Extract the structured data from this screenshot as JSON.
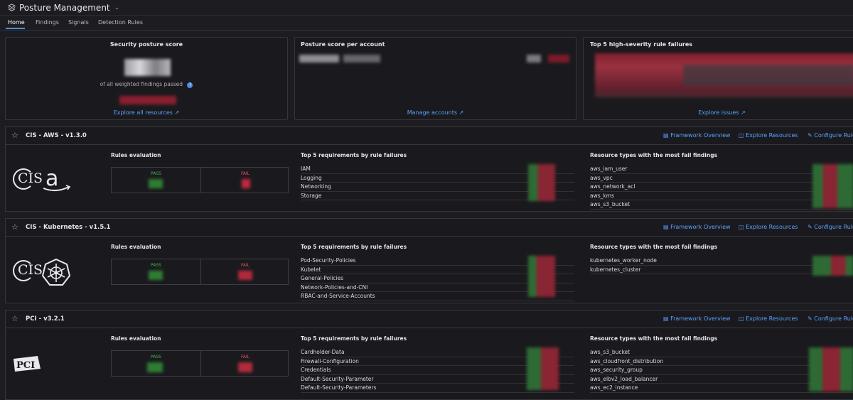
{
  "header": {
    "title": "Posture Management"
  },
  "tabs": [
    "Home",
    "Findings",
    "Signals",
    "Detection Rules"
  ],
  "cards": {
    "score": {
      "title": "Security posture score",
      "caption": "of all weighted findings passed",
      "link": "Explore all resources"
    },
    "accounts": {
      "title": "Posture score per account",
      "link": "Manage accounts"
    },
    "failures": {
      "title": "Top 5 high-severity rule failures",
      "link": "Explore issues"
    }
  },
  "section_actions": {
    "overview": "Framework Overview",
    "resources": "Explore Resources",
    "configure": "Configure Rules"
  },
  "section_labels": {
    "rules_eval": "Rules evaluation",
    "top_requirements": "Top 5 requirements by rule failures",
    "resource_types": "Resource types with the most fail findings",
    "pass": "PASS",
    "fail": "FAIL"
  },
  "frameworks": [
    {
      "title": "CIS - AWS - v1.3.0",
      "logos": [
        "CIS",
        "amazon"
      ],
      "requirements": [
        "IAM",
        "Logging",
        "Networking",
        "Storage"
      ],
      "resources": [
        "aws_iam_user",
        "aws_vpc",
        "aws_network_acl",
        "aws_kms",
        "aws_s3_bucket"
      ]
    },
    {
      "title": "CIS - Kubernetes - v1.5.1",
      "logos": [
        "CIS",
        "kubernetes"
      ],
      "requirements": [
        "Pod-Security-Policies",
        "Kubelet",
        "General-Policies",
        "Network-Policies-and-CNI",
        "RBAC-and-Service-Accounts"
      ],
      "resources": [
        "kubernetes_worker_node",
        "kubernetes_cluster"
      ]
    },
    {
      "title": "PCI - v3.2.1",
      "logos": [
        "PCI"
      ],
      "requirements": [
        "Cardholder-Data",
        "Firewall-Configuration",
        "Credentials",
        "Default-Security-Parameter",
        "Default-Security-Parameters"
      ],
      "resources": [
        "aws_s3_bucket",
        "aws_cloudfront_distribution",
        "aws_security_group",
        "aws_elbv2_load_balancer",
        "aws_ec2_instance"
      ]
    }
  ],
  "colors": {
    "accent": "#4a90e2",
    "link": "#5aa2ff",
    "pass": "#4caf50",
    "fail": "#e05563"
  }
}
